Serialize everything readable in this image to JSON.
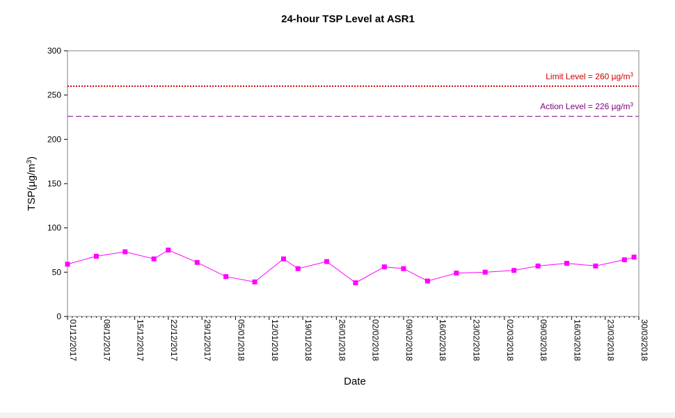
{
  "chart_data": {
    "type": "line",
    "title": "24-hour TSP Level at ASR1",
    "xlabel": "Date",
    "ylabel_main": "TSP(µg/m",
    "ylabel_sup": "3",
    "ylabel_end": ")",
    "ylim": [
      0,
      300
    ],
    "yticks": [
      "0",
      "50",
      "100",
      "150",
      "200",
      "250",
      "300"
    ],
    "xlim": [
      "2017-12-01",
      "2018-03-30"
    ],
    "xtick_labels": [
      "01/12/2017",
      "08/12/2017",
      "15/12/2017",
      "22/12/2017",
      "29/12/2017",
      "05/01/2018",
      "12/01/2018",
      "19/01/2018",
      "26/01/2018",
      "02/02/2018",
      "09/02/2018",
      "16/02/2018",
      "23/02/2018",
      "02/03/2018",
      "09/03/2018",
      "16/03/2018",
      "23/03/2018",
      "30/03/2018"
    ],
    "grid": false,
    "series": [
      {
        "color": "#ff00ff",
        "marker": "square",
        "x": [
          "2017-12-01",
          "2017-12-07",
          "2017-12-13",
          "2017-12-19",
          "2017-12-22",
          "2017-12-28",
          "2018-01-03",
          "2018-01-09",
          "2018-01-15",
          "2018-01-18",
          "2018-01-24",
          "2018-01-30",
          "2018-02-05",
          "2018-02-09",
          "2018-02-14",
          "2018-02-20",
          "2018-02-26",
          "2018-03-04",
          "2018-03-09",
          "2018-03-15",
          "2018-03-21",
          "2018-03-27",
          "2018-03-29"
        ],
        "values": [
          59,
          68,
          73,
          65,
          75,
          61,
          45,
          39,
          65,
          54,
          62,
          38,
          56,
          54,
          40,
          49,
          50,
          52,
          57,
          60,
          57,
          64,
          67
        ]
      }
    ],
    "reference_lines": [
      {
        "label_main": "Limit Level = 260 µg/m",
        "label_sup": "3",
        "value": 260,
        "color": "#cc0000",
        "style": "dotted"
      },
      {
        "label_main": "Action Level = 226 µg/m",
        "label_sup": "3",
        "value": 226,
        "color": "#800080",
        "style": "dashed"
      }
    ]
  }
}
